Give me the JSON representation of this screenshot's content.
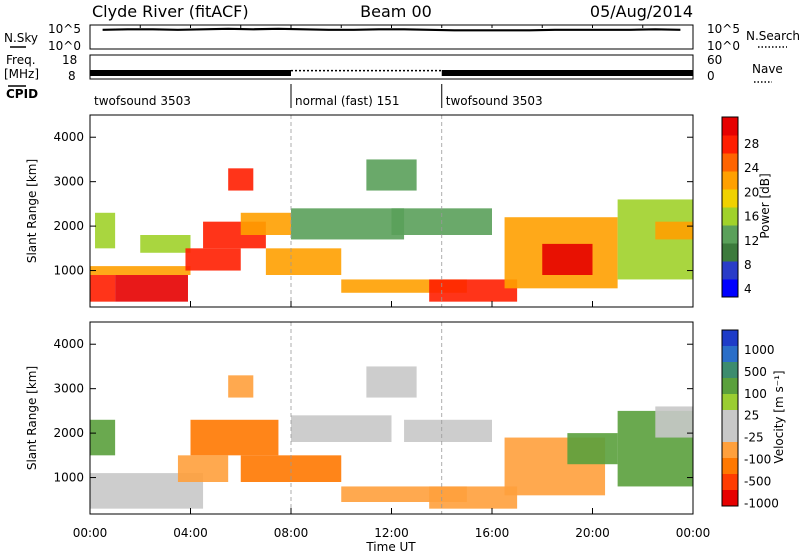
{
  "header": {
    "station": "Clyde River (fitACF)",
    "beam": "Beam 00",
    "date": "05/Aug/2014"
  },
  "top_panels": {
    "nsky_label": "N.Sky",
    "nsearch_label": "N.Search",
    "freq_label_line1": "Freq.",
    "freq_label_line2": "[MHz]",
    "nave_label": "Nave",
    "cpid_label": "CPID",
    "nsky_ticks": [
      "10^5",
      "10^0"
    ],
    "nsearch_ticks": [
      "10^5",
      "10^0"
    ],
    "freq_ticks": [
      "18",
      "8"
    ],
    "nave_ticks": [
      "60",
      "0"
    ],
    "cpid_segments": [
      {
        "label": "twofsound 3503",
        "start_h": 0,
        "end_h": 8
      },
      {
        "label": "normal (fast) 151",
        "start_h": 8,
        "end_h": 14
      },
      {
        "label": "twofsound 3503",
        "start_h": 14,
        "end_h": 24
      }
    ]
  },
  "axes": {
    "xlabel": "Time UT",
    "x_ticks": [
      "00:00",
      "04:00",
      "08:00",
      "12:00",
      "16:00",
      "20:00",
      "00:00"
    ],
    "ylabel": "Slant Range [km]",
    "y_ticks": [
      "1000",
      "2000",
      "3000",
      "4000"
    ]
  },
  "power_colorbar": {
    "label": "Power [dB]",
    "ticks": [
      "28",
      "24",
      "20",
      "16",
      "12",
      "8",
      "4"
    ],
    "colors": [
      "#0000ff",
      "#2a3cc8",
      "#3c7a3c",
      "#5aa05a",
      "#a0d22a",
      "#f0d200",
      "#ffa000",
      "#ff6400",
      "#ff1e00",
      "#e60000"
    ]
  },
  "velocity_colorbar": {
    "label": "Velocity [m s⁻¹]",
    "ticks": [
      "1000",
      "500",
      "100",
      "25",
      "-25",
      "-100",
      "-500",
      "-1000"
    ],
    "colors": [
      "#1e3cc8",
      "#2a6ec8",
      "#3c8c6e",
      "#5aa03c",
      "#9acd32",
      "#c8c8c8",
      "#c8c8c8",
      "#ffa03c",
      "#ff7800",
      "#ff3c00",
      "#e60000"
    ]
  },
  "chart_data": [
    {
      "type": "line",
      "title": "N.Sky / N.Search",
      "x_unit": "hours UT",
      "xlim": [
        0,
        24
      ],
      "series": [
        {
          "name": "N.Sky",
          "values_log10": [
            4.0,
            4.1,
            4.1,
            4.0,
            4.1,
            4.2,
            4.1,
            4.2,
            4.1,
            4.0,
            4.0,
            4.1,
            4.1,
            4.0,
            3.9,
            3.9,
            3.9,
            3.9,
            4.0,
            4.0,
            4.0,
            4.0,
            4.1,
            4.0
          ]
        }
      ]
    },
    {
      "type": "line",
      "title": "Freq. / Nave",
      "xlim": [
        0,
        24
      ],
      "series": [
        {
          "name": "Freq.",
          "x": [
            0,
            8,
            8,
            14,
            14,
            24
          ],
          "values": [
            10.5,
            10.5,
            11.5,
            11.5,
            10.5,
            10.5
          ]
        }
      ]
    },
    {
      "type": "heatmap",
      "title": "Power",
      "xlabel": "Time UT",
      "ylabel": "Slant Range [km]",
      "xlim": [
        0,
        24
      ],
      "ylim": [
        180,
        4500
      ],
      "colorbar_label": "Power [dB]",
      "clim": [
        0,
        30
      ],
      "regions": [
        {
          "t0": 0.0,
          "t1": 1.0,
          "r0": 300,
          "r1": 900,
          "value": 24
        },
        {
          "t0": 1.0,
          "t1": 3.9,
          "r0": 300,
          "r1": 900,
          "value": 28
        },
        {
          "t0": 0.0,
          "t1": 4.0,
          "r0": 900,
          "r1": 1100,
          "value": 18
        },
        {
          "t0": 0.2,
          "t1": 1.0,
          "r0": 1500,
          "r1": 2300,
          "value": 12
        },
        {
          "t0": 2.0,
          "t1": 4.0,
          "r0": 1400,
          "r1": 1800,
          "value": 14
        },
        {
          "t0": 3.8,
          "t1": 6.0,
          "r0": 1000,
          "r1": 1500,
          "value": 24
        },
        {
          "t0": 4.5,
          "t1": 7.0,
          "r0": 1500,
          "r1": 2100,
          "value": 24
        },
        {
          "t0": 5.5,
          "t1": 6.5,
          "r0": 2800,
          "r1": 3300,
          "value": 24
        },
        {
          "t0": 6.0,
          "t1": 8.0,
          "r0": 1800,
          "r1": 2300,
          "value": 18
        },
        {
          "t0": 7.0,
          "t1": 10.0,
          "r0": 900,
          "r1": 1500,
          "value": 20
        },
        {
          "t0": 8.0,
          "t1": 12.5,
          "r0": 1700,
          "r1": 2400,
          "value": 10
        },
        {
          "t0": 10.0,
          "t1": 15.0,
          "r0": 500,
          "r1": 800,
          "value": 20
        },
        {
          "t0": 13.5,
          "t1": 17.0,
          "r0": 300,
          "r1": 800,
          "value": 26
        },
        {
          "t0": 11.0,
          "t1": 13.0,
          "r0": 2800,
          "r1": 3500,
          "value": 10
        },
        {
          "t0": 12.0,
          "t1": 16.0,
          "r0": 1800,
          "r1": 2400,
          "value": 10
        },
        {
          "t0": 16.5,
          "t1": 21.0,
          "r0": 600,
          "r1": 2200,
          "value": 18
        },
        {
          "t0": 18.0,
          "t1": 20.0,
          "r0": 900,
          "r1": 1600,
          "value": 27
        },
        {
          "t0": 21.0,
          "t1": 24.0,
          "r0": 800,
          "r1": 2600,
          "value": 14
        },
        {
          "t0": 22.5,
          "t1": 24.0,
          "r0": 1700,
          "r1": 2100,
          "value": 20
        }
      ]
    },
    {
      "type": "heatmap",
      "title": "Velocity",
      "xlabel": "Time UT",
      "ylabel": "Slant Range [km]",
      "xlim": [
        0,
        24
      ],
      "ylim": [
        180,
        4500
      ],
      "colorbar_label": "Velocity [m s⁻¹]",
      "clim": [
        -1000,
        1000
      ],
      "regions": [
        {
          "t0": 0.0,
          "t1": 4.5,
          "r0": 300,
          "r1": 1100,
          "value": 0
        },
        {
          "t0": 0.0,
          "t1": 1.0,
          "r0": 1500,
          "r1": 2300,
          "value": 150
        },
        {
          "t0": 3.5,
          "t1": 5.5,
          "r0": 900,
          "r1": 1500,
          "value": -300
        },
        {
          "t0": 4.0,
          "t1": 7.5,
          "r0": 1500,
          "r1": 2300,
          "value": -350
        },
        {
          "t0": 5.5,
          "t1": 6.5,
          "r0": 2800,
          "r1": 3300,
          "value": -200
        },
        {
          "t0": 6.0,
          "t1": 10.0,
          "r0": 900,
          "r1": 1500,
          "value": -500
        },
        {
          "t0": 8.0,
          "t1": 12.0,
          "r0": 1800,
          "r1": 2400,
          "value": 0
        },
        {
          "t0": 10.0,
          "t1": 15.0,
          "r0": 450,
          "r1": 800,
          "value": -300
        },
        {
          "t0": 13.5,
          "t1": 17.0,
          "r0": 300,
          "r1": 800,
          "value": -300
        },
        {
          "t0": 11.0,
          "t1": 13.0,
          "r0": 2800,
          "r1": 3500,
          "value": 0
        },
        {
          "t0": 12.5,
          "t1": 16.0,
          "r0": 1800,
          "r1": 2300,
          "value": 0
        },
        {
          "t0": 16.5,
          "t1": 20.5,
          "r0": 600,
          "r1": 1900,
          "value": -300
        },
        {
          "t0": 19.0,
          "t1": 21.0,
          "r0": 1300,
          "r1": 2000,
          "value": 150
        },
        {
          "t0": 21.0,
          "t1": 24.0,
          "r0": 800,
          "r1": 2500,
          "value": 150
        },
        {
          "t0": 22.5,
          "t1": 24.0,
          "r0": 1900,
          "r1": 2600,
          "value": 0
        }
      ]
    }
  ]
}
